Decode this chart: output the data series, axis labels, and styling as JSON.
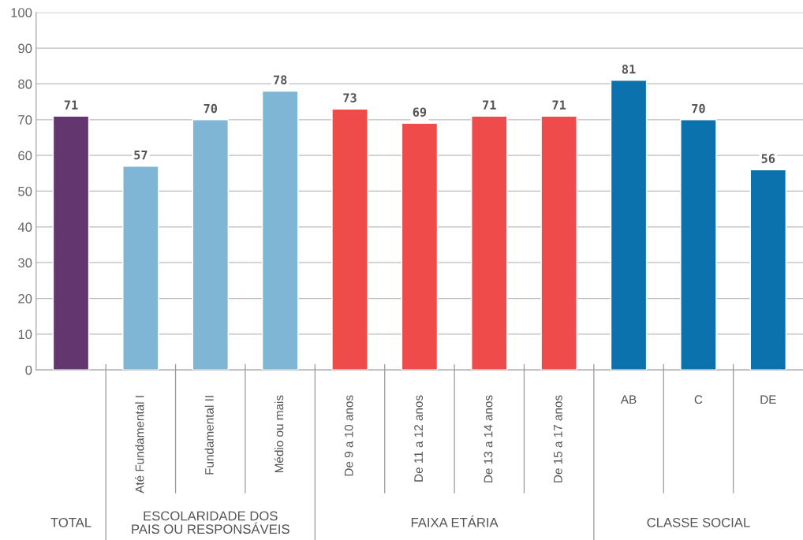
{
  "chart_data": {
    "type": "bar",
    "categories": [
      null,
      "Até Fundamental I",
      "Fundamental II",
      "Médio ou mais",
      "De 9 a 10 anos",
      "De 11 a 12 anos",
      "De 13 a 14 anos",
      "De 15 a 17 anos",
      "AB",
      "C",
      "DE"
    ],
    "values": [
      71,
      57,
      70,
      78,
      73,
      69,
      71,
      71,
      81,
      70,
      56
    ],
    "colors": [
      "#63366f",
      "#7fb5d5",
      "#7fb5d5",
      "#7fb5d5",
      "#ef4b4b",
      "#ef4b4b",
      "#ef4b4b",
      "#ef4b4b",
      "#0b72ad",
      "#0b72ad",
      "#0b72ad"
    ],
    "ylim": [
      0,
      100
    ],
    "yticks": [
      0,
      10,
      20,
      30,
      40,
      50,
      60,
      70,
      80,
      90,
      100
    ],
    "grid": "y",
    "data_labels": true,
    "annotations": [
      "TOTAL",
      "ESCOLARIDADE DOS\nPAIS OU RESPONSÁVEIS",
      "FAIXA ETÁRIA",
      "CLASSE SOCIAL"
    ]
  }
}
